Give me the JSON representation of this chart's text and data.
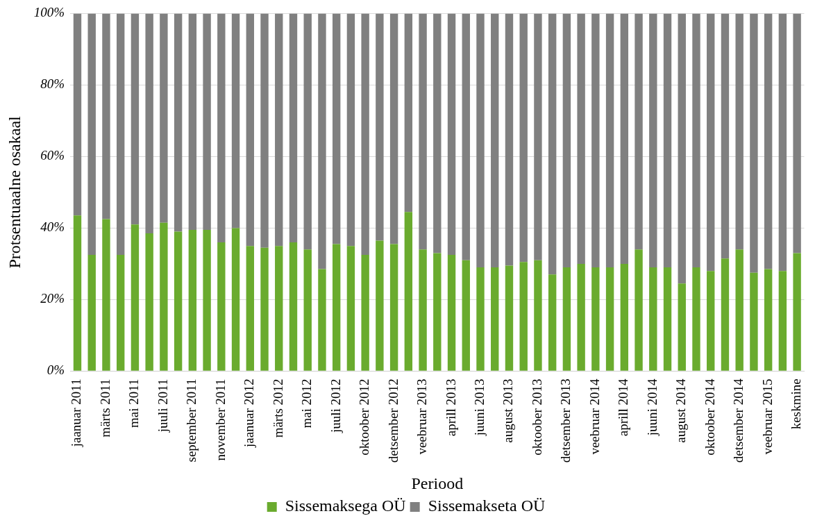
{
  "chart_data": {
    "type": "bar",
    "stacked": true,
    "xlabel": "Periood",
    "ylabel": "Protsentuaalne osakaal",
    "categories": [
      "jaanuar 2011",
      null,
      "märts 2011",
      null,
      "mai 2011",
      null,
      "juuli 2011",
      null,
      "september 2011",
      null,
      "november 2011",
      null,
      "jaanuar 2012",
      null,
      "märts 2012",
      null,
      "mai 2012",
      null,
      "juuli 2012",
      null,
      "oktoober 2012",
      null,
      "detsember 2012",
      null,
      "veebruar 2013",
      null,
      "aprill 2013",
      null,
      "juuni 2013",
      null,
      "august 2013",
      null,
      "oktoober 2013",
      null,
      "detsember 2013",
      null,
      "veebruar 2014",
      null,
      "aprill 2014",
      null,
      "juuni 2014",
      null,
      "august 2014",
      null,
      "oktoober 2014",
      null,
      "detsember 2014",
      null,
      "veebruar 2015",
      null,
      "keskmine"
    ],
    "series": [
      {
        "name": "Sissemaksega OÜ",
        "color": "#6aab2e",
        "values": [
          43.5,
          32.5,
          42.5,
          32.5,
          41,
          38.5,
          41.5,
          39,
          39.5,
          39.5,
          36,
          40,
          35,
          34.5,
          35,
          36,
          34,
          28.5,
          35.5,
          35,
          32.5,
          36.5,
          35.5,
          44.5,
          34,
          33,
          32.5,
          31,
          29,
          29,
          29.5,
          30.5,
          31,
          27,
          29,
          30,
          29,
          29,
          30,
          34,
          29,
          29,
          24.5,
          29,
          28,
          31.5,
          34,
          27.5,
          28.5,
          28,
          33
        ]
      },
      {
        "name": "Sissemakseta OÜ",
        "color": "#808080",
        "values": [
          56.5,
          67.5,
          57.5,
          67.5,
          59,
          61.5,
          58.5,
          61,
          60.5,
          60.5,
          64,
          60,
          65,
          65.5,
          65,
          64,
          66,
          71.5,
          64.5,
          65,
          67.5,
          63.5,
          64.5,
          55.5,
          66,
          67,
          67.5,
          69,
          71,
          71,
          70.5,
          69.5,
          69,
          73,
          71,
          70,
          71,
          71,
          70,
          66,
          71,
          71,
          75.5,
          71,
          72,
          68.5,
          66,
          72.5,
          71.5,
          72,
          67
        ]
      }
    ],
    "ylim": [
      0,
      100
    ],
    "yticks": [
      {
        "value": 0,
        "label": "0%"
      },
      {
        "value": 20,
        "label": "20%"
      },
      {
        "value": 40,
        "label": "40%"
      },
      {
        "value": 60,
        "label": "60%"
      },
      {
        "value": 80,
        "label": "80%"
      },
      {
        "value": 100,
        "label": "100%"
      }
    ],
    "grid": "y",
    "legend": "bottom"
  }
}
